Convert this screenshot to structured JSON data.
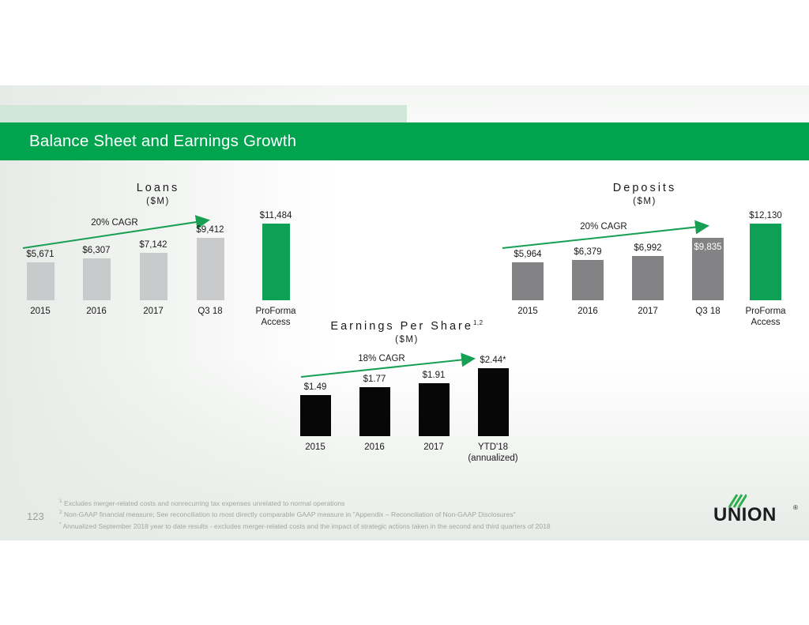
{
  "slide": {
    "title": "Balance Sheet and Earnings Growth",
    "page_number": "123"
  },
  "colors": {
    "brand_green": "#00a44f",
    "accent_band_green": "#cfe6d9",
    "bar_green": "#0ea155",
    "gray_light": "#c9cacb",
    "gray_dark": "#838385",
    "black": "#070707",
    "arrow_green": "#17a053",
    "footnote_gray": "#a0a8a2"
  },
  "chart_data": [
    {
      "type": "bar",
      "title": "Loans",
      "unit_label": "($M)",
      "cagr_label": "20% CAGR",
      "categories": [
        "2015",
        "2016",
        "2017",
        "Q3 18",
        "ProForma Access"
      ],
      "values": [
        5671,
        6307,
        7142,
        9412,
        11484
      ],
      "bars": [
        {
          "axis_label": "2015",
          "value": 5671,
          "value_label": "$5,671",
          "color": "gray_light"
        },
        {
          "axis_label": "2016",
          "value": 6307,
          "value_label": "$6,307",
          "color": "gray_light"
        },
        {
          "axis_label": "2017",
          "value": 7142,
          "value_label": "$7,142",
          "color": "gray_light"
        },
        {
          "axis_label": "Q3 18",
          "value": 9412,
          "value_label": "$9,412",
          "color": "gray_light"
        },
        {
          "axis_label": "ProForma\nAccess",
          "value": 11484,
          "value_label": "$11,484",
          "color": "bar_green"
        }
      ]
    },
    {
      "type": "bar",
      "title": "Deposits",
      "unit_label": "($M)",
      "cagr_label": "20% CAGR",
      "categories": [
        "2015",
        "2016",
        "2017",
        "Q3 18",
        "ProForma Access"
      ],
      "values": [
        5964,
        6379,
        6992,
        9835,
        12130
      ],
      "bars": [
        {
          "axis_label": "2015",
          "value": 5964,
          "value_label": "$5,964",
          "color": "gray_dark"
        },
        {
          "axis_label": "2016",
          "value": 6379,
          "value_label": "$6,379",
          "color": "gray_dark"
        },
        {
          "axis_label": "2017",
          "value": 6992,
          "value_label": "$6,992",
          "color": "gray_dark"
        },
        {
          "axis_label": "Q3 18",
          "value": 9835,
          "value_label": "$9,835",
          "color": "gray_dark",
          "label_inside": true
        },
        {
          "axis_label": "ProForma\nAccess",
          "value": 12130,
          "value_label": "$12,130",
          "color": "bar_green"
        }
      ]
    },
    {
      "type": "bar",
      "title": "Earnings Per Share",
      "title_sup": "1,2",
      "unit_label": "($M)",
      "cagr_label": "18% CAGR",
      "categories": [
        "2015",
        "2016",
        "2017",
        "YTD'18 (annualized)"
      ],
      "values": [
        1.49,
        1.77,
        1.91,
        2.44
      ],
      "bars": [
        {
          "axis_label": "2015",
          "value": 1.49,
          "value_label": "$1.49",
          "color": "black"
        },
        {
          "axis_label": "2016",
          "value": 1.77,
          "value_label": "$1.77",
          "color": "black"
        },
        {
          "axis_label": "2017",
          "value": 1.91,
          "value_label": "$1.91",
          "color": "black"
        },
        {
          "axis_label": "YTD'18\n(annualized)",
          "value": 2.44,
          "value_label": "$2.44*",
          "color": "black"
        }
      ]
    }
  ],
  "footnotes": [
    {
      "sup": "1",
      "text": "Excludes merger-related costs and nonrecurring tax expenses unrelated to normal operations"
    },
    {
      "sup": "2",
      "text": "Non-GAAP financial measure; See reconciliation to most directly comparable GAAP measure in \"Appendix – Reconciliation of Non-GAAP Disclosures\""
    },
    {
      "sup": "*",
      "text": "Annualized September 2018 year to date results - excludes merger-related costs and the impact of strategic actions taken in the second and third quarters of 2018"
    }
  ],
  "logo": {
    "text": "UNION",
    "registered": "®"
  }
}
